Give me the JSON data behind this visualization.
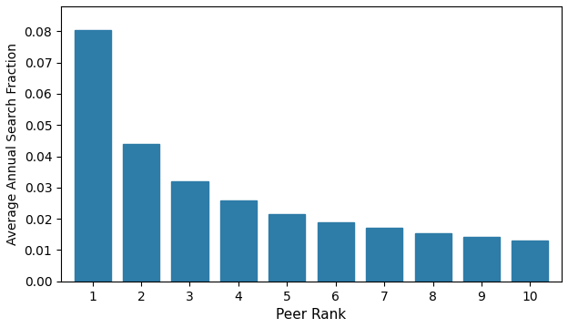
{
  "categories": [
    1,
    2,
    3,
    4,
    5,
    6,
    7,
    8,
    9,
    10
  ],
  "values": [
    0.0805,
    0.044,
    0.032,
    0.026,
    0.0215,
    0.019,
    0.017,
    0.0155,
    0.0143,
    0.013
  ],
  "bar_color": "#2e7ca8",
  "xlabel": "Peer Rank",
  "ylabel": "Average Annual Search Fraction",
  "ylim": [
    0,
    0.088
  ],
  "yticks": [
    0.0,
    0.01,
    0.02,
    0.03,
    0.04,
    0.05,
    0.06,
    0.07,
    0.08
  ],
  "background_color": "#ffffff",
  "figwidth": 6.24,
  "figheight": 3.6,
  "dpi": 100
}
